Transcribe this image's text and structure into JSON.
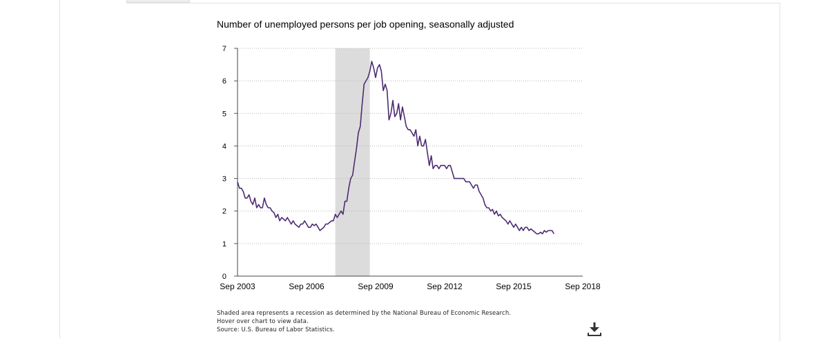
{
  "chart_data": {
    "type": "line",
    "title": "Number of unemployed persons per job opening, seasonally adjusted",
    "xlabel": "",
    "ylabel": "",
    "ylim": [
      0,
      7
    ],
    "yticks": [
      "0",
      "1",
      "2",
      "3",
      "4",
      "5",
      "6",
      "7"
    ],
    "xlim": [
      "2003-09",
      "2018-09"
    ],
    "xticks": [
      "Sep 2003",
      "Sep 2006",
      "Sep 2009",
      "Sep 2012",
      "Sep 2015",
      "Sep 2018"
    ],
    "grid": true,
    "line_color": "#4b2c72",
    "recession_color": "#dcdcdc",
    "recession": {
      "start": "2007-12",
      "end": "2009-06"
    },
    "series": [
      {
        "name": "",
        "values": [
          [
            "2003-09",
            2.9
          ],
          [
            "2003-10",
            2.7
          ],
          [
            "2003-11",
            2.7
          ],
          [
            "2003-12",
            2.6
          ],
          [
            "2004-01",
            2.4
          ],
          [
            "2004-02",
            2.4
          ],
          [
            "2004-03",
            2.5
          ],
          [
            "2004-04",
            2.3
          ],
          [
            "2004-05",
            2.2
          ],
          [
            "2004-06",
            2.4
          ],
          [
            "2004-07",
            2.1
          ],
          [
            "2004-08",
            2.2
          ],
          [
            "2004-09",
            2.1
          ],
          [
            "2004-10",
            2.1
          ],
          [
            "2004-11",
            2.4
          ],
          [
            "2004-12",
            2.2
          ],
          [
            "2005-01",
            2.1
          ],
          [
            "2005-02",
            2.1
          ],
          [
            "2005-03",
            2.0
          ],
          [
            "2005-04",
            1.95
          ],
          [
            "2005-05",
            1.8
          ],
          [
            "2005-06",
            1.9
          ],
          [
            "2005-07",
            1.7
          ],
          [
            "2005-08",
            1.8
          ],
          [
            "2005-09",
            1.75
          ],
          [
            "2005-10",
            1.7
          ],
          [
            "2005-11",
            1.8
          ],
          [
            "2005-12",
            1.7
          ],
          [
            "2006-01",
            1.6
          ],
          [
            "2006-02",
            1.7
          ],
          [
            "2006-03",
            1.6
          ],
          [
            "2006-04",
            1.55
          ],
          [
            "2006-05",
            1.5
          ],
          [
            "2006-06",
            1.6
          ],
          [
            "2006-07",
            1.6
          ],
          [
            "2006-08",
            1.7
          ],
          [
            "2006-09",
            1.6
          ],
          [
            "2006-10",
            1.5
          ],
          [
            "2006-11",
            1.5
          ],
          [
            "2006-12",
            1.6
          ],
          [
            "2007-01",
            1.55
          ],
          [
            "2007-02",
            1.6
          ],
          [
            "2007-03",
            1.5
          ],
          [
            "2007-04",
            1.4
          ],
          [
            "2007-05",
            1.45
          ],
          [
            "2007-06",
            1.5
          ],
          [
            "2007-07",
            1.6
          ],
          [
            "2007-08",
            1.6
          ],
          [
            "2007-09",
            1.65
          ],
          [
            "2007-10",
            1.7
          ],
          [
            "2007-11",
            1.7
          ],
          [
            "2007-12",
            1.9
          ],
          [
            "2008-01",
            1.8
          ],
          [
            "2008-02",
            1.9
          ],
          [
            "2008-03",
            2.0
          ],
          [
            "2008-04",
            1.9
          ],
          [
            "2008-05",
            2.3
          ],
          [
            "2008-06",
            2.3
          ],
          [
            "2008-07",
            2.7
          ],
          [
            "2008-08",
            3.0
          ],
          [
            "2008-09",
            3.1
          ],
          [
            "2008-10",
            3.5
          ],
          [
            "2008-11",
            3.9
          ],
          [
            "2008-12",
            4.4
          ],
          [
            "2009-01",
            4.6
          ],
          [
            "2009-02",
            5.3
          ],
          [
            "2009-03",
            5.9
          ],
          [
            "2009-04",
            6.0
          ],
          [
            "2009-05",
            6.1
          ],
          [
            "2009-06",
            6.3
          ],
          [
            "2009-07",
            6.6
          ],
          [
            "2009-08",
            6.4
          ],
          [
            "2009-09",
            6.1
          ],
          [
            "2009-10",
            6.4
          ],
          [
            "2009-11",
            6.5
          ],
          [
            "2009-12",
            6.3
          ],
          [
            "2010-01",
            5.7
          ],
          [
            "2010-02",
            5.9
          ],
          [
            "2010-03",
            5.7
          ],
          [
            "2010-04",
            4.8
          ],
          [
            "2010-05",
            5.0
          ],
          [
            "2010-06",
            5.4
          ],
          [
            "2010-07",
            4.9
          ],
          [
            "2010-08",
            5.0
          ],
          [
            "2010-09",
            5.3
          ],
          [
            "2010-10",
            4.8
          ],
          [
            "2010-11",
            5.2
          ],
          [
            "2010-12",
            4.9
          ],
          [
            "2011-01",
            4.6
          ],
          [
            "2011-02",
            4.5
          ],
          [
            "2011-03",
            4.5
          ],
          [
            "2011-04",
            4.4
          ],
          [
            "2011-05",
            4.3
          ],
          [
            "2011-06",
            4.5
          ],
          [
            "2011-07",
            4.0
          ],
          [
            "2011-08",
            4.3
          ],
          [
            "2011-09",
            4.0
          ],
          [
            "2011-10",
            4.0
          ],
          [
            "2011-11",
            4.2
          ],
          [
            "2011-12",
            3.8
          ],
          [
            "2012-01",
            3.4
          ],
          [
            "2012-02",
            3.7
          ],
          [
            "2012-03",
            3.3
          ],
          [
            "2012-04",
            3.4
          ],
          [
            "2012-05",
            3.4
          ],
          [
            "2012-06",
            3.3
          ],
          [
            "2012-07",
            3.4
          ],
          [
            "2012-08",
            3.4
          ],
          [
            "2012-09",
            3.4
          ],
          [
            "2012-10",
            3.3
          ],
          [
            "2012-11",
            3.4
          ],
          [
            "2012-12",
            3.4
          ],
          [
            "2013-01",
            3.2
          ],
          [
            "2013-02",
            3.0
          ],
          [
            "2013-03",
            3.0
          ],
          [
            "2013-04",
            3.0
          ],
          [
            "2013-05",
            3.0
          ],
          [
            "2013-06",
            3.0
          ],
          [
            "2013-07",
            3.0
          ],
          [
            "2013-08",
            2.9
          ],
          [
            "2013-09",
            2.9
          ],
          [
            "2013-10",
            2.9
          ],
          [
            "2013-11",
            2.8
          ],
          [
            "2013-12",
            2.7
          ],
          [
            "2014-01",
            2.8
          ],
          [
            "2014-02",
            2.8
          ],
          [
            "2014-03",
            2.6
          ],
          [
            "2014-04",
            2.5
          ],
          [
            "2014-05",
            2.4
          ],
          [
            "2014-06",
            2.2
          ],
          [
            "2014-07",
            2.1
          ],
          [
            "2014-08",
            2.1
          ],
          [
            "2014-09",
            2.0
          ],
          [
            "2014-10",
            2.05
          ],
          [
            "2014-11",
            1.9
          ],
          [
            "2014-12",
            2.0
          ],
          [
            "2015-01",
            1.85
          ],
          [
            "2015-02",
            1.9
          ],
          [
            "2015-03",
            1.8
          ],
          [
            "2015-04",
            1.75
          ],
          [
            "2015-05",
            1.7
          ],
          [
            "2015-06",
            1.6
          ],
          [
            "2015-07",
            1.7
          ],
          [
            "2015-08",
            1.6
          ],
          [
            "2015-09",
            1.5
          ],
          [
            "2015-10",
            1.6
          ],
          [
            "2015-11",
            1.5
          ],
          [
            "2015-12",
            1.4
          ],
          [
            "2016-01",
            1.5
          ],
          [
            "2016-02",
            1.4
          ],
          [
            "2016-03",
            1.5
          ],
          [
            "2016-04",
            1.5
          ],
          [
            "2016-05",
            1.4
          ],
          [
            "2016-06",
            1.45
          ],
          [
            "2016-07",
            1.4
          ],
          [
            "2016-08",
            1.35
          ],
          [
            "2016-09",
            1.3
          ],
          [
            "2016-10",
            1.3
          ],
          [
            "2016-11",
            1.35
          ],
          [
            "2016-12",
            1.3
          ],
          [
            "2017-01",
            1.4
          ],
          [
            "2017-02",
            1.35
          ],
          [
            "2017-03",
            1.4
          ],
          [
            "2017-04",
            1.4
          ],
          [
            "2017-05",
            1.4
          ],
          [
            "2017-06",
            1.3
          ]
        ]
      }
    ]
  },
  "notes": {
    "recession": "Shaded area represents a recession as determined by the National Bureau of Economic Research.",
    "hover": "Hover over chart to view data.",
    "source": "Source: U.S. Bureau of Labor Statistics."
  },
  "icons": {
    "download": "download-icon"
  }
}
